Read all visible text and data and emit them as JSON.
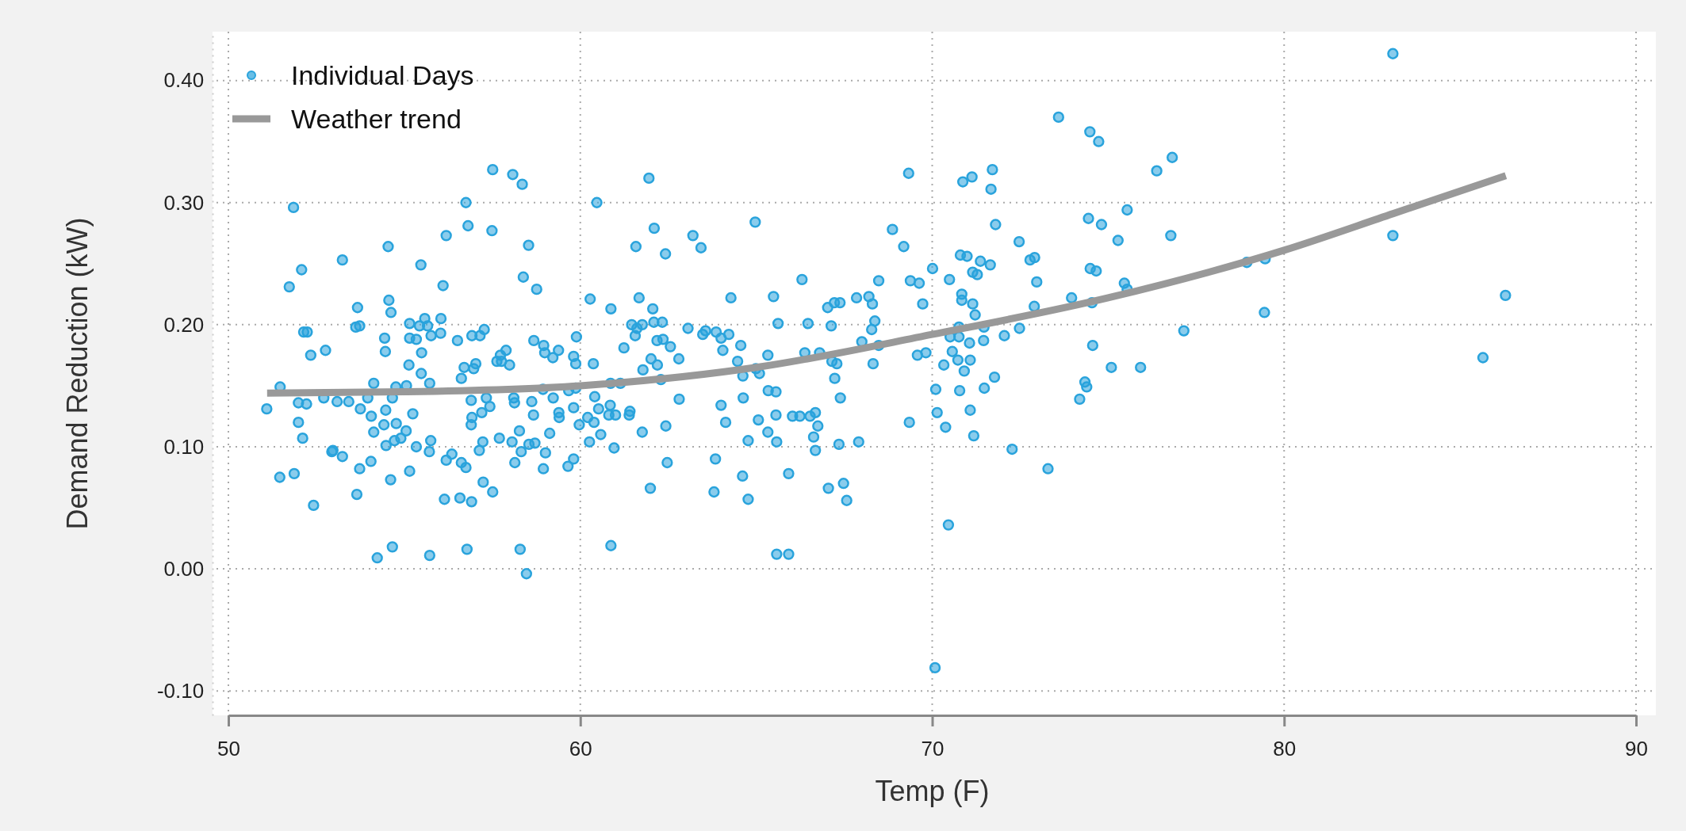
{
  "chart_data": {
    "type": "scatter",
    "xlabel": "Temp (F)",
    "ylabel": "Demand Reduction (kW)",
    "xlim": [
      50,
      90
    ],
    "xticks": [
      50,
      60,
      70,
      80,
      90
    ],
    "ylim": [
      -0.12,
      0.44
    ],
    "yticks": [
      {
        "value": -0.1,
        "label": "-0.10"
      },
      {
        "value": 0,
        "label": "0.00"
      },
      {
        "value": 0.1,
        "label": "0.10"
      },
      {
        "value": 0.2,
        "label": "0.20"
      },
      {
        "value": 0.3,
        "label": "0.30"
      },
      {
        "value": 0.4,
        "label": "0.40"
      }
    ],
    "grid": true,
    "legend": "top left",
    "series": [
      {
        "name": "Individual Days",
        "color": "#29a3dc",
        "marker": "circle",
        "x": [
          57.51,
          58.08,
          58.35,
          61.95,
          51.85,
          56.75,
          60.47,
          56.81,
          57.49,
          62.1,
          54.54,
          56.19,
          58.53,
          61.58,
          62.42,
          63.2,
          63.43,
          53.24,
          55.47,
          52.08,
          51.73,
          56.1,
          58.38,
          58.76,
          60.28,
          60.87,
          61.67,
          62.06,
          53.67,
          54.56,
          54.62,
          52.14,
          52.24,
          53.62,
          53.73,
          52.76,
          52.34,
          54.44,
          54.46,
          55.15,
          55.15,
          55.34,
          55.43,
          55.58,
          55.66,
          55.76,
          56.03,
          56.04,
          55.49,
          55.13,
          55.48,
          55.72,
          56.51,
          56.92,
          57.15,
          57.27,
          56.7,
          56.62,
          56.97,
          57.03,
          57.63,
          57.73,
          57.89,
          57.76,
          57.99,
          58.68,
          58.96,
          58.99,
          59.22,
          59.38,
          59.89,
          59.81,
          59.87,
          51.47,
          51.09,
          51.99,
          52.22,
          52.71,
          53.09,
          53.42,
          53.75,
          54.13,
          53.96,
          54.06,
          54.47,
          54.66,
          54.76,
          55.06,
          55.24,
          51.99,
          52.11,
          52.97,
          52.94,
          53.24,
          54.42,
          54.13,
          54.77,
          55.05,
          54.9,
          54.72,
          54.48,
          55.34,
          55.71,
          55.75,
          51.46,
          51.87,
          52.42,
          53.73,
          54.05,
          53.65,
          54.61,
          55.15,
          54.23,
          54.66,
          55.72,
          56.78,
          58.29,
          58.47,
          60.87,
          56.14,
          56.58,
          56.91,
          57.24,
          57.51,
          56.19,
          56.35,
          56.62,
          56.75,
          57.13,
          57.23,
          57.7,
          58.06,
          58.27,
          58.32,
          58.14,
          58.54,
          58.71,
          59.01,
          58.95,
          59.13,
          59.65,
          59.81,
          56.9,
          56.92,
          56.9,
          57.2,
          57.33,
          57.43,
          58.11,
          58.13,
          58.62,
          58.67,
          59.23,
          59.39,
          59.4,
          59.67,
          59.81,
          59.97,
          58.94,
          59.87,
          60.26,
          60.21,
          60.39,
          60.58,
          60.96,
          60.52,
          60.41,
          60.85,
          60.81,
          61.0,
          61.41,
          61.39,
          61.76,
          62.43,
          62.47,
          61.99,
          62.81,
          60.37,
          61.24,
          61.46,
          61.61,
          61.76,
          61.56,
          61.78,
          62.01,
          62.19,
          62.09,
          62.33,
          62.18,
          62.35,
          62.56,
          62.8,
          62.29,
          63.06,
          63.48,
          63.56,
          60.86,
          61.14,
          73.59,
          74.48,
          74.73,
          69.33,
          70.87,
          71.13,
          71.71,
          71.67,
          76.38,
          76.82,
          64.97,
          68.87,
          69.19,
          71.8,
          72.47,
          74.44,
          74.81,
          75.54,
          75.28,
          76.78,
          70.01,
          70.8,
          70.99,
          71.37,
          71.65,
          71.15,
          71.28,
          70.49,
          72.78,
          72.91,
          72.97,
          74.49,
          74.66,
          75.46,
          75.54,
          66.3,
          64.28,
          65.49,
          67.03,
          67.22,
          67.38,
          67.85,
          68.2,
          68.3,
          68.48,
          69.38,
          69.63,
          69.73,
          70.84,
          70.84,
          71.15,
          71.22,
          72.9,
          73.96,
          74.54,
          63.86,
          64.0,
          64.22,
          64.05,
          64.56,
          64.47,
          65.62,
          65.33,
          64.99,
          65.09,
          66.47,
          66.38,
          66.8,
          67.13,
          68.28,
          68.37,
          68.0,
          68.48,
          67.15,
          67.29,
          67.23,
          68.32,
          67.39,
          69.58,
          69.82,
          70.76,
          70.51,
          70.76,
          71.06,
          71.47,
          71.46,
          70.57,
          70.73,
          71.08,
          70.91,
          70.33,
          72.05,
          72.48,
          74.56,
          71.77,
          71.48,
          70.78,
          70.1,
          75.09,
          75.92,
          74.34,
          74.39,
          74.19,
          71.08,
          70.14,
          70.38,
          71.18,
          69.35,
          72.27,
          73.29,
          70.46,
          70.08,
          64.0,
          64.13,
          64.63,
          64.62,
          64.77,
          63.84,
          63.8,
          64.61,
          64.77,
          65.06,
          65.33,
          65.56,
          65.34,
          65.56,
          65.58,
          65.92,
          65.58,
          65.92,
          66.03,
          66.24,
          66.53,
          66.68,
          66.75,
          66.63,
          66.68,
          67.35,
          67.91,
          67.05,
          67.48,
          67.57,
          83.09,
          83.09,
          78.94,
          79.46,
          79.44,
          86.29,
          85.65,
          77.15
        ],
        "values": [
          0.327,
          0.323,
          0.315,
          0.32,
          0.296,
          0.3,
          0.3,
          0.281,
          0.277,
          0.279,
          0.264,
          0.273,
          0.265,
          0.264,
          0.258,
          0.273,
          0.263,
          0.253,
          0.249,
          0.245,
          0.231,
          0.232,
          0.239,
          0.229,
          0.221,
          0.213,
          0.222,
          0.213,
          0.214,
          0.22,
          0.21,
          0.194,
          0.194,
          0.198,
          0.199,
          0.179,
          0.175,
          0.189,
          0.178,
          0.201,
          0.189,
          0.188,
          0.199,
          0.205,
          0.199,
          0.191,
          0.193,
          0.205,
          0.177,
          0.167,
          0.16,
          0.152,
          0.187,
          0.191,
          0.191,
          0.196,
          0.165,
          0.156,
          0.164,
          0.168,
          0.17,
          0.175,
          0.179,
          0.17,
          0.167,
          0.187,
          0.183,
          0.177,
          0.173,
          0.179,
          0.19,
          0.174,
          0.168,
          0.149,
          0.131,
          0.136,
          0.135,
          0.14,
          0.137,
          0.137,
          0.131,
          0.152,
          0.14,
          0.125,
          0.13,
          0.14,
          0.149,
          0.15,
          0.127,
          0.12,
          0.107,
          0.097,
          0.096,
          0.092,
          0.118,
          0.112,
          0.119,
          0.113,
          0.107,
          0.105,
          0.101,
          0.1,
          0.096,
          0.105,
          0.075,
          0.078,
          0.052,
          0.082,
          0.088,
          0.061,
          0.073,
          0.08,
          0.009,
          0.018,
          0.011,
          0.016,
          0.016,
          -0.004,
          0.019,
          0.057,
          0.058,
          0.055,
          0.071,
          0.063,
          0.089,
          0.094,
          0.087,
          0.083,
          0.097,
          0.104,
          0.107,
          0.104,
          0.113,
          0.096,
          0.087,
          0.102,
          0.103,
          0.095,
          0.082,
          0.111,
          0.084,
          0.09,
          0.138,
          0.124,
          0.118,
          0.128,
          0.14,
          0.133,
          0.14,
          0.136,
          0.137,
          0.126,
          0.14,
          0.128,
          0.124,
          0.146,
          0.132,
          0.118,
          0.147,
          0.148,
          0.104,
          0.124,
          0.12,
          0.11,
          0.099,
          0.131,
          0.141,
          0.134,
          0.126,
          0.126,
          0.129,
          0.126,
          0.112,
          0.117,
          0.087,
          0.066,
          0.139,
          0.168,
          0.181,
          0.2,
          0.197,
          0.2,
          0.191,
          0.163,
          0.172,
          0.167,
          0.202,
          0.202,
          0.187,
          0.188,
          0.182,
          0.172,
          0.155,
          0.197,
          0.192,
          0.195,
          0.152,
          0.152,
          0.37,
          0.358,
          0.35,
          0.324,
          0.317,
          0.321,
          0.327,
          0.311,
          0.326,
          0.337,
          0.284,
          0.278,
          0.264,
          0.282,
          0.268,
          0.287,
          0.282,
          0.294,
          0.269,
          0.273,
          0.246,
          0.257,
          0.256,
          0.252,
          0.249,
          0.243,
          0.241,
          0.237,
          0.253,
          0.255,
          0.235,
          0.246,
          0.244,
          0.234,
          0.229,
          0.237,
          0.222,
          0.223,
          0.214,
          0.218,
          0.218,
          0.222,
          0.223,
          0.217,
          0.236,
          0.236,
          0.234,
          0.217,
          0.225,
          0.22,
          0.217,
          0.208,
          0.215,
          0.222,
          0.218,
          0.194,
          0.189,
          0.192,
          0.179,
          0.183,
          0.17,
          0.201,
          0.175,
          0.164,
          0.16,
          0.201,
          0.177,
          0.177,
          0.199,
          0.196,
          0.203,
          0.186,
          0.183,
          0.17,
          0.168,
          0.156,
          0.168,
          0.14,
          0.175,
          0.177,
          0.198,
          0.19,
          0.19,
          0.185,
          0.198,
          0.187,
          0.178,
          0.171,
          0.171,
          0.162,
          0.167,
          0.191,
          0.197,
          0.183,
          0.157,
          0.148,
          0.146,
          0.147,
          0.165,
          0.165,
          0.153,
          0.149,
          0.139,
          0.13,
          0.128,
          0.116,
          0.109,
          0.12,
          0.098,
          0.082,
          0.036,
          -0.081,
          0.134,
          0.12,
          0.14,
          0.158,
          0.105,
          0.09,
          0.063,
          0.076,
          0.057,
          0.122,
          0.112,
          0.126,
          0.146,
          0.145,
          0.104,
          0.078,
          0.012,
          0.012,
          0.125,
          0.125,
          0.125,
          0.128,
          0.117,
          0.108,
          0.097,
          0.102,
          0.104,
          0.066,
          0.07,
          0.056,
          0.422,
          0.273,
          0.251,
          0.254,
          0.21,
          0.224,
          0.173,
          0.195
        ]
      },
      {
        "name": "Weather trend",
        "type": "line",
        "color": "#999999",
        "line_style": "solid",
        "x": [
          51.1,
          55,
          60,
          65,
          70,
          75,
          80,
          83.1,
          86.3
        ],
        "values": [
          0.144,
          0.145,
          0.15,
          0.165,
          0.192,
          0.222,
          0.261,
          0.291,
          0.322
        ]
      }
    ]
  }
}
